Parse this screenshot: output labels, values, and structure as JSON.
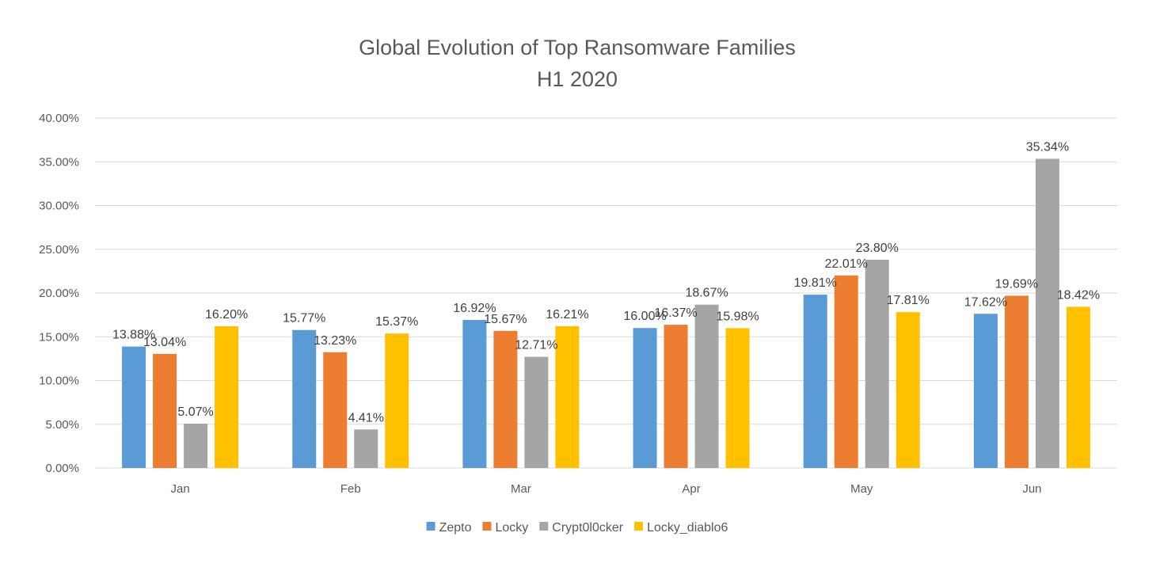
{
  "chart_data": {
    "type": "bar",
    "title": "Global Evolution of Top Ransomware Families",
    "subtitle": "H1 2020",
    "xlabel": "",
    "ylabel": "",
    "categories": [
      "Jan",
      "Feb",
      "Mar",
      "Apr",
      "May",
      "Jun"
    ],
    "series": [
      {
        "name": "Zepto",
        "color": "#5b9bd5",
        "values": [
          13.88,
          15.77,
          16.92,
          16.0,
          19.81,
          17.62
        ],
        "labels": [
          "13.88%",
          "15.77%",
          "16.92%",
          "16.00%",
          "19.81%",
          "17.62%"
        ]
      },
      {
        "name": "Locky",
        "color": "#ed7d31",
        "values": [
          13.04,
          13.23,
          15.67,
          16.37,
          22.01,
          19.69
        ],
        "labels": [
          "13.04%",
          "13.23%",
          "15.67%",
          "16.37%",
          "22.01%",
          "19.69%"
        ]
      },
      {
        "name": "Crypt0l0cker",
        "color": "#a5a5a5",
        "values": [
          5.07,
          4.41,
          12.71,
          18.67,
          23.8,
          35.34
        ],
        "labels": [
          "5.07%",
          "4.41%",
          "12.71%",
          "18.67%",
          "23.80%",
          "35.34%"
        ]
      },
      {
        "name": "Locky_diablo6",
        "color": "#ffc000",
        "values": [
          16.2,
          15.37,
          16.21,
          15.98,
          17.81,
          18.42
        ],
        "labels": [
          "16.20%",
          "15.37%",
          "16.21%",
          "15.98%",
          "17.81%",
          "18.42%"
        ]
      }
    ],
    "ylim": [
      0,
      40
    ],
    "yticks": [
      0,
      5,
      10,
      15,
      20,
      25,
      30,
      35,
      40
    ],
    "ytick_labels": [
      "0.00%",
      "5.00%",
      "10.00%",
      "15.00%",
      "20.00%",
      "25.00%",
      "30.00%",
      "35.00%",
      "40.00%"
    ],
    "grid": true,
    "legend_position": "bottom",
    "gridline_color": "#d9d9d9"
  }
}
